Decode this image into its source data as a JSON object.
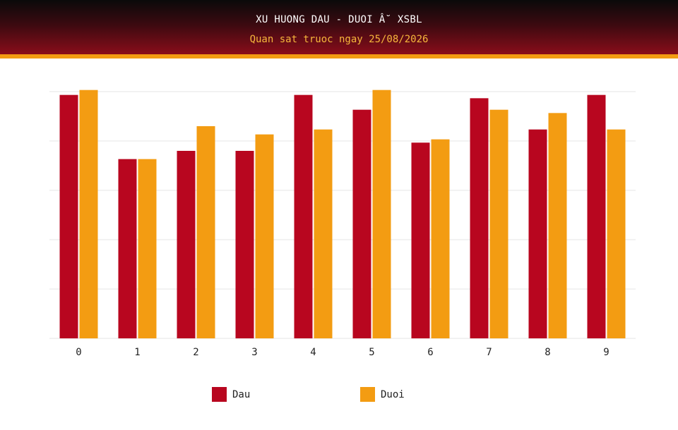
{
  "header": {
    "title": "XU HUONG DAU - DUOI Â˘ XSBL",
    "subtitle": "Quan sat truoc ngay 25/08/2026"
  },
  "colors": {
    "dau": "#b8061f",
    "duoi": "#f39c12",
    "grid": "#e6e6e6",
    "axis_text": "#222222"
  },
  "chart_data": {
    "type": "bar",
    "categories": [
      "0",
      "1",
      "2",
      "3",
      "4",
      "5",
      "6",
      "7",
      "8",
      "9"
    ],
    "series": [
      {
        "name": "Dau",
        "values": [
          14.8,
          10.9,
          11.4,
          11.4,
          14.8,
          13.9,
          11.9,
          14.6,
          12.7,
          14.8
        ]
      },
      {
        "name": "Duoi",
        "values": [
          15.1,
          10.9,
          12.9,
          12.4,
          12.7,
          15.1,
          12.1,
          13.9,
          13.7,
          12.7
        ]
      }
    ],
    "ylim": [
      0,
      15
    ],
    "grid": true,
    "legend_position": "bottom"
  }
}
